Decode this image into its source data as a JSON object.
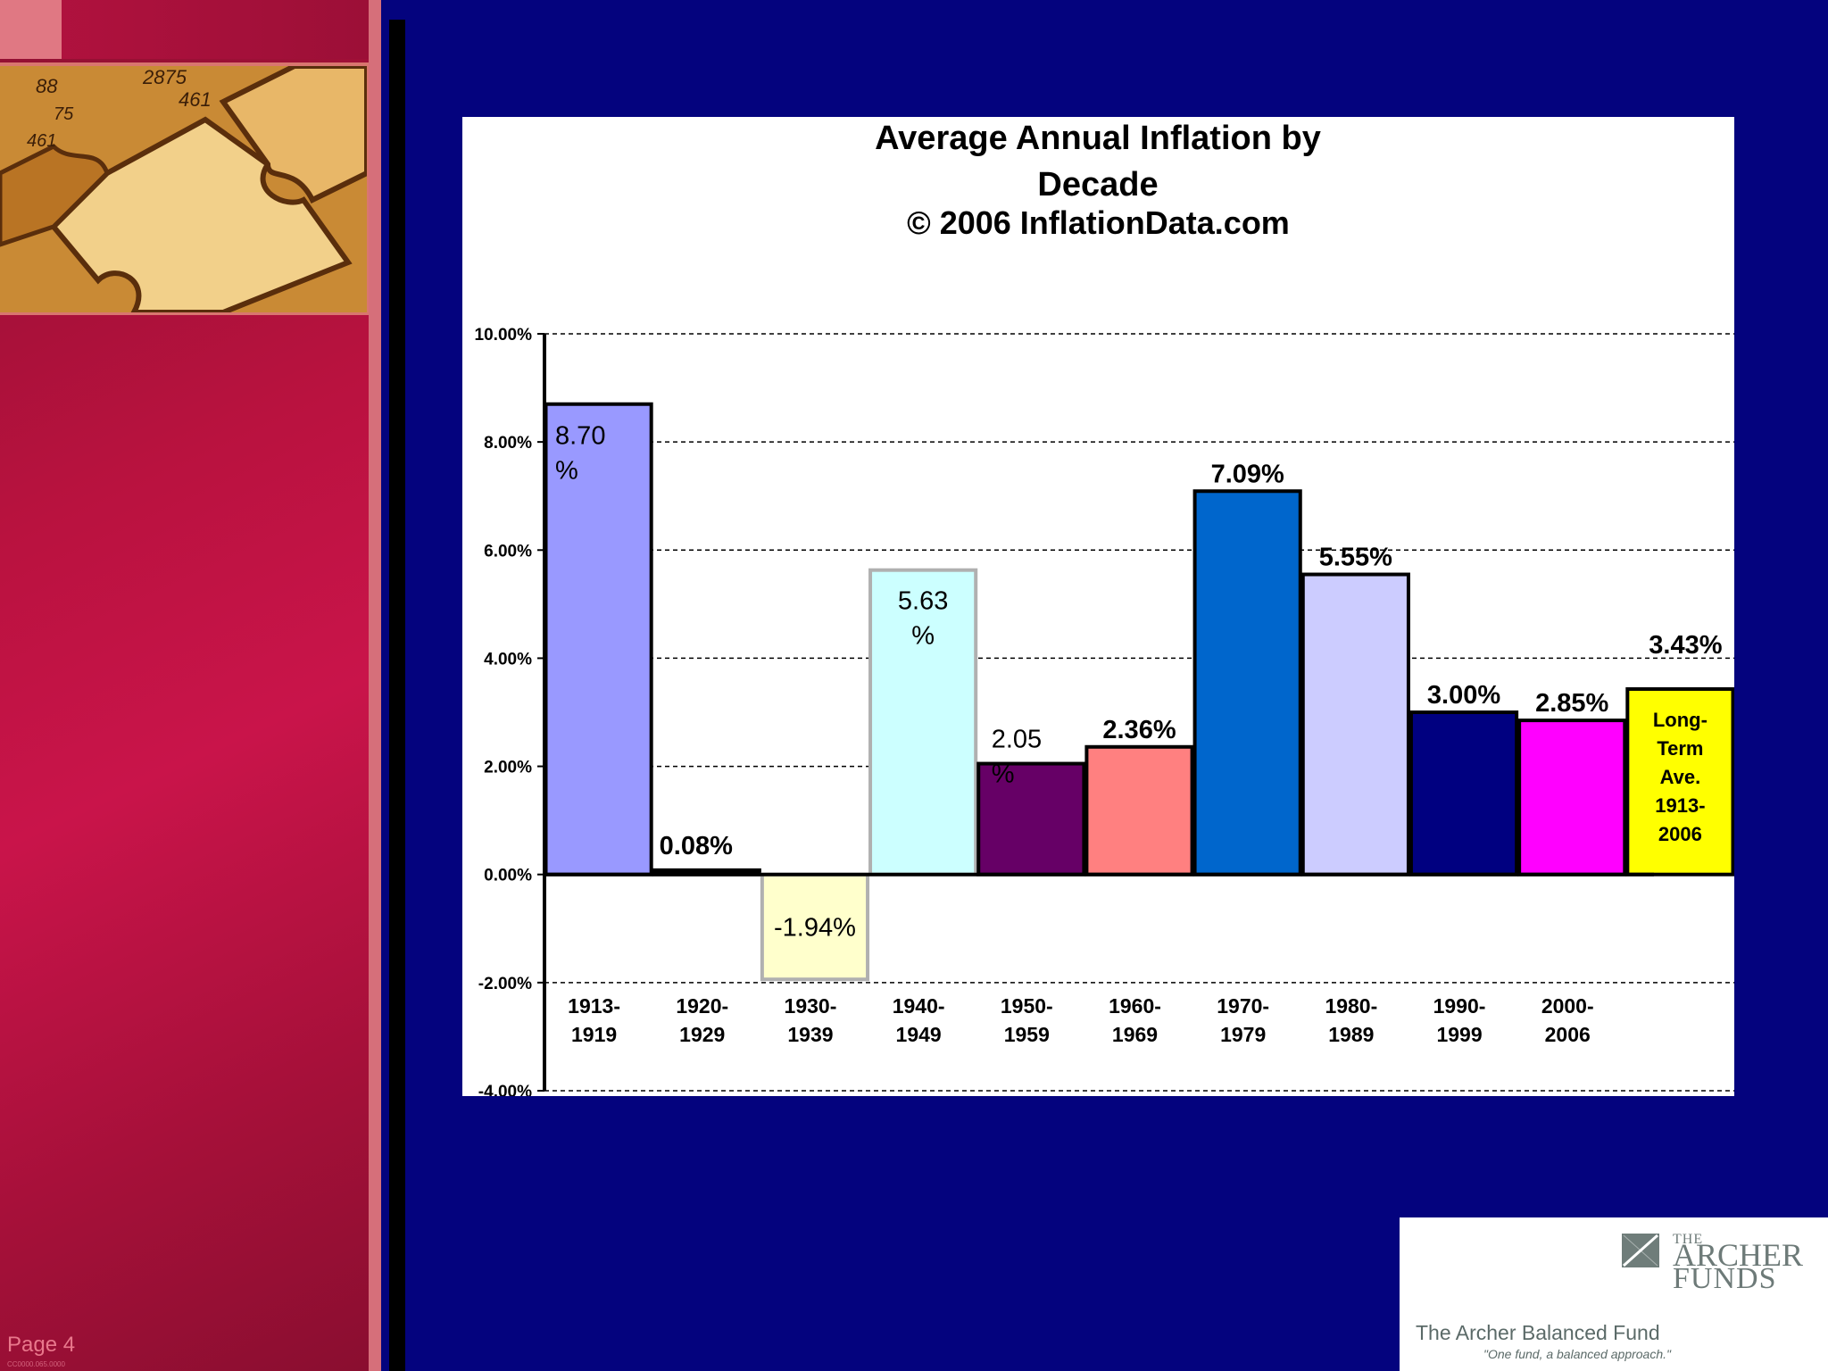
{
  "slide": {
    "page_label": "Page 4",
    "code": "CC0000.065.0000"
  },
  "logo": {
    "the": "THE",
    "archer": "ARCHER",
    "funds": "FUNDS",
    "fund_name": "The Archer Balanced Fund",
    "tagline": "\"One fund, a balanced approach.\""
  },
  "chart_data": {
    "type": "bar",
    "title": "Average Annual Inflation by Decade",
    "subtitle": "© 2006 InflationData.com",
    "ylim": [
      -4,
      10
    ],
    "y_ticks": [
      10,
      8,
      6,
      4,
      2,
      0,
      -2,
      -4
    ],
    "y_tick_labels": [
      "10.00%",
      "8.00%",
      "6.00%",
      "4.00%",
      "2.00%",
      "0.00%",
      "-2.00%",
      "-4.00%"
    ],
    "grid": true,
    "categories": [
      "1913-1919",
      "1920-1929",
      "1930-1939",
      "1940-1949",
      "1950-1959",
      "1960-1969",
      "1970-1979",
      "1980-1989",
      "1990-1999",
      "2000-2006",
      "Long-Term Ave. 1913-2006"
    ],
    "values": [
      8.7,
      0.08,
      -1.94,
      5.63,
      2.05,
      2.36,
      7.09,
      5.55,
      3.0,
      2.85,
      3.43
    ],
    "data_labels": [
      "8.70 %",
      "0.08%",
      "-1.94%",
      "5.63 %",
      "2.05 %",
      "2.36%",
      "7.09%",
      "5.55%",
      "3.00%",
      "2.85%",
      "3.43%"
    ],
    "x_labels": [
      [
        "1913-",
        "1919"
      ],
      [
        "1920-",
        "1929"
      ],
      [
        "1930-",
        "1939"
      ],
      [
        "1940-",
        "1949"
      ],
      [
        "1950-",
        "1959"
      ],
      [
        "1960-",
        "1969"
      ],
      [
        "1970-",
        "1979"
      ],
      [
        "1980-",
        "1989"
      ],
      [
        "1990-",
        "1999"
      ],
      [
        "2000-",
        "2006"
      ],
      []
    ],
    "inner_label": [
      "Long-",
      "Term",
      "Ave.",
      "1913-",
      "2006"
    ],
    "colors": [
      "#9999ff",
      "#000000",
      "#ffffcc",
      "#ccffff",
      "#660066",
      "#ff8080",
      "#0066cc",
      "#ccccff",
      "#000080",
      "#ff00ff",
      "#ffff00"
    ],
    "borders": [
      "#000000",
      "#000000",
      "#b0b0b0",
      "#b0b0b0",
      "#000000",
      "#000000",
      "#000000",
      "#000000",
      "#000000",
      "#000000",
      "#000000"
    ]
  }
}
